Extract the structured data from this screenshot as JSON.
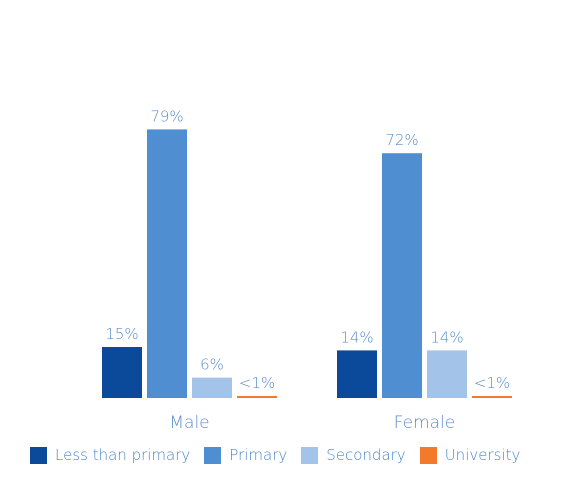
{
  "chart_data": {
    "type": "bar",
    "categories": [
      "Male",
      "Female"
    ],
    "series": [
      {
        "name": "Less than primary",
        "color": "#0b4a9b",
        "values": [
          15,
          14
        ],
        "labels": [
          "15%",
          "14%"
        ]
      },
      {
        "name": "Primary",
        "color": "#4f8fd1",
        "values": [
          79,
          72
        ],
        "labels": [
          "79%",
          "72%"
        ]
      },
      {
        "name": "Secondary",
        "color": "#a3c4e8",
        "values": [
          6,
          14
        ],
        "labels": [
          "6%",
          "14%"
        ]
      },
      {
        "name": "University",
        "color": "#f27a2a",
        "values": [
          0.4,
          0.4
        ],
        "labels": [
          "<1%",
          "<1%"
        ]
      }
    ],
    "ylim": [
      0,
      100
    ],
    "grid": false,
    "legend_position": "bottom",
    "label_color": "#5b8ec9"
  }
}
